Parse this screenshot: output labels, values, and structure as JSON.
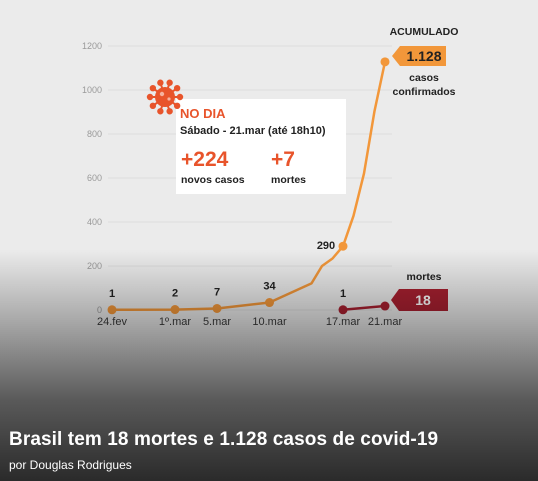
{
  "headline": "Brasil tem 18 mortes e 1.128 casos de covid-19",
  "byline": "por Douglas Rodrigues",
  "colors": {
    "cases": "#f2973a",
    "deaths": "#a82030",
    "accent": "#e8542b",
    "grid": "#dcdcdc"
  },
  "chart_data": {
    "type": "line",
    "ylim": [
      0,
      1200
    ],
    "yticks": [
      0,
      200,
      400,
      600,
      800,
      1000,
      1200
    ],
    "x_labels": [
      {
        "label": "24.fev",
        "day": 0
      },
      {
        "label": "1º.mar",
        "day": 6
      },
      {
        "label": "5.mar",
        "day": 10
      },
      {
        "label": "10.mar",
        "day": 15
      },
      {
        "label": "17.mar",
        "day": 22
      },
      {
        "label": "21.mar",
        "day": 26
      }
    ],
    "series": [
      {
        "key": "cases",
        "points": [
          {
            "day": 0,
            "value": 1
          },
          {
            "day": 6,
            "value": 2
          },
          {
            "day": 10,
            "value": 7
          },
          {
            "day": 15,
            "value": 34
          },
          {
            "day": 19,
            "value": 121
          },
          {
            "day": 20,
            "value": 200
          },
          {
            "day": 21,
            "value": 234
          },
          {
            "day": 22,
            "value": 290
          },
          {
            "day": 23,
            "value": 428
          },
          {
            "day": 24,
            "value": 621
          },
          {
            "day": 25,
            "value": 904
          },
          {
            "day": 26,
            "value": 1128
          }
        ],
        "markers": [
          {
            "day": 0,
            "value": 1,
            "label": "1"
          },
          {
            "day": 6,
            "value": 2,
            "label": "2"
          },
          {
            "day": 10,
            "value": 7,
            "label": "7"
          },
          {
            "day": 15,
            "value": 34,
            "label": "34"
          },
          {
            "day": 22,
            "value": 290,
            "label": "290"
          },
          {
            "day": 26,
            "value": 1128,
            "label": ""
          }
        ]
      },
      {
        "key": "deaths",
        "points": [
          {
            "day": 22,
            "value": 1
          },
          {
            "day": 26,
            "value": 18
          }
        ],
        "markers": [
          {
            "day": 22,
            "value": 1,
            "label": "1"
          },
          {
            "day": 26,
            "value": 18,
            "label": ""
          }
        ]
      }
    ],
    "accumulated": {
      "header": "ACUMULADO",
      "cases_value": "1.128",
      "cases_label_1": "casos",
      "cases_label_2": "confirmados",
      "deaths_header": "mortes",
      "deaths_value": "18"
    },
    "daily_box": {
      "title": "NO DIA",
      "subtitle": "Sábado - 21.mar (até 18h10)",
      "new_cases": "+224",
      "new_cases_label": "novos casos",
      "new_deaths": "+7",
      "new_deaths_label": "mortes"
    },
    "virus_icon": "coronavirus-icon"
  }
}
